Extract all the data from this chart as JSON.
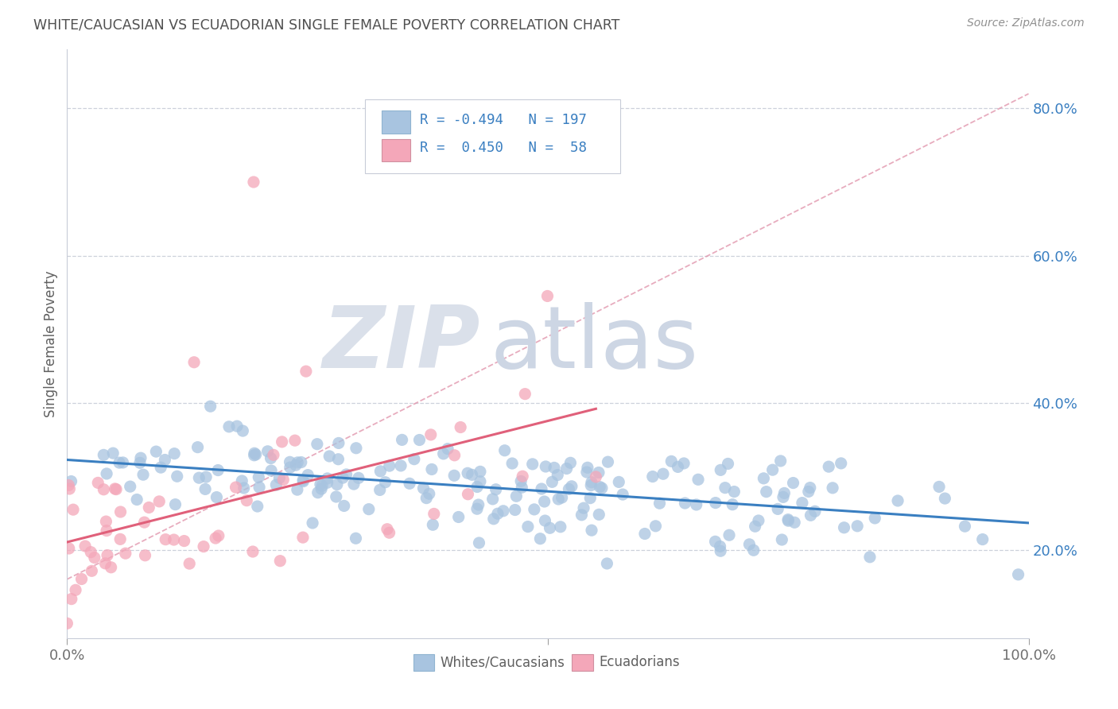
{
  "title": "WHITE/CAUCASIAN VS ECUADORIAN SINGLE FEMALE POVERTY CORRELATION CHART",
  "source": "Source: ZipAtlas.com",
  "ylabel": "Single Female Poverty",
  "ytick_values": [
    0.2,
    0.4,
    0.6,
    0.8
  ],
  "legend_label1": "Whites/Caucasians",
  "legend_label2": "Ecuadorians",
  "blue_color": "#a8c4e0",
  "pink_color": "#f4a7b9",
  "blue_line_color": "#3a7fc1",
  "pink_line_color": "#e0607a",
  "dashed_line_color": "#e090a8",
  "background_color": "#ffffff",
  "title_color": "#505050",
  "axis_color": "#c8ccd8",
  "watermark_zip_color": "#d8dde8",
  "watermark_atlas_color": "#d0d8e8",
  "N_blue": 197,
  "N_pink": 58,
  "R_blue": -0.494,
  "R_pink": 0.45,
  "xmin": 0.0,
  "xmax": 1.0,
  "ymin": 0.08,
  "ymax": 0.88
}
